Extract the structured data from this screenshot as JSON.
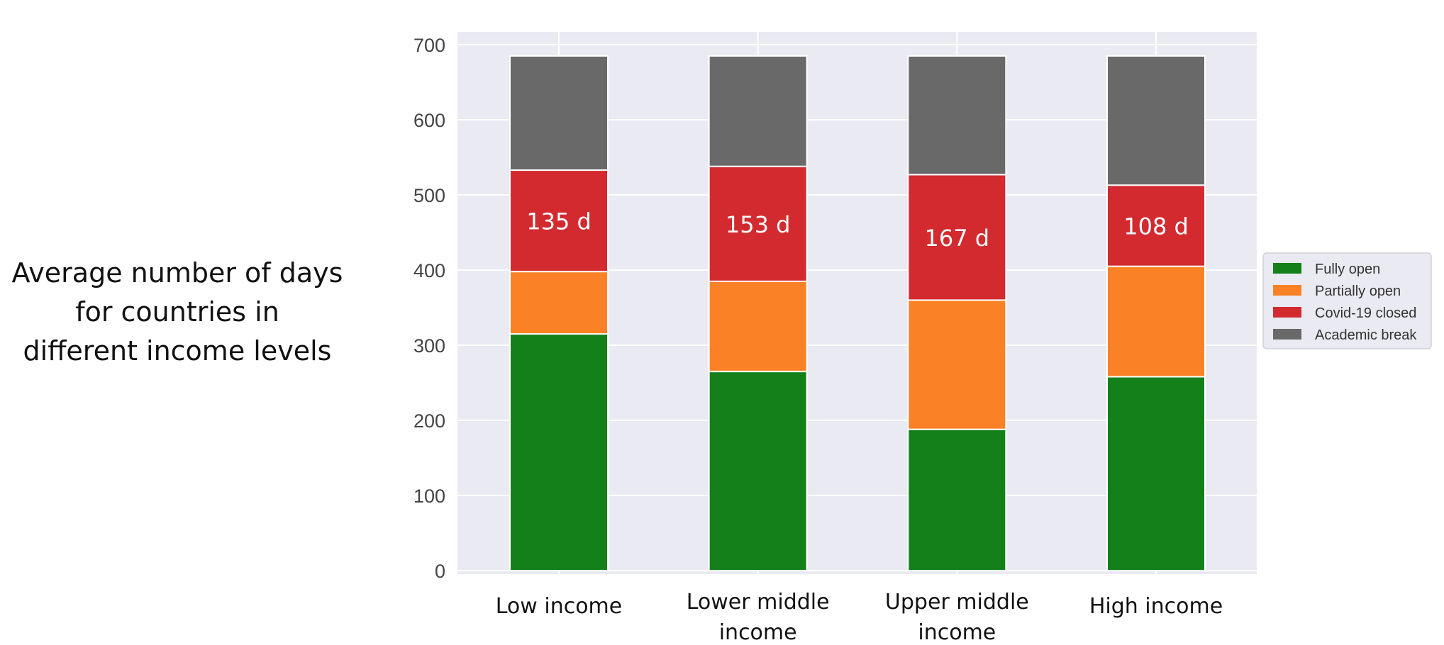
{
  "side_title": {
    "line1": "Average number of days",
    "line2": "for countries in",
    "line3": "different income levels"
  },
  "chart_data": {
    "type": "bar",
    "stacked": true,
    "title": "",
    "xlabel": "",
    "ylabel": "",
    "ylim": [
      0,
      700
    ],
    "yticks": [
      0,
      100,
      200,
      300,
      400,
      500,
      600,
      700
    ],
    "grid": true,
    "legend_position": "right",
    "categories": [
      [
        "Low income"
      ],
      [
        "Lower middle",
        "income"
      ],
      [
        "Upper middle",
        "income"
      ],
      [
        "High income"
      ]
    ],
    "series": [
      {
        "name": "Fully open",
        "color": "#138019",
        "values": [
          315,
          265,
          188,
          258
        ]
      },
      {
        "name": "Partially open",
        "color": "#fa8126",
        "values": [
          83,
          120,
          172,
          147
        ]
      },
      {
        "name": "Covid-19 closed",
        "color": "#d22a2f",
        "values": [
          135,
          153,
          167,
          108
        ]
      },
      {
        "name": "Academic break",
        "color": "#696969",
        "values": [
          152,
          147,
          158,
          172
        ]
      }
    ],
    "data_labels": {
      "series": "Covid-19 closed",
      "texts": [
        "135 d",
        "153 d",
        "167 d",
        "108 d"
      ]
    },
    "colors": {
      "plot_background": "#eaeaf2",
      "grid": "#ffffff"
    }
  }
}
